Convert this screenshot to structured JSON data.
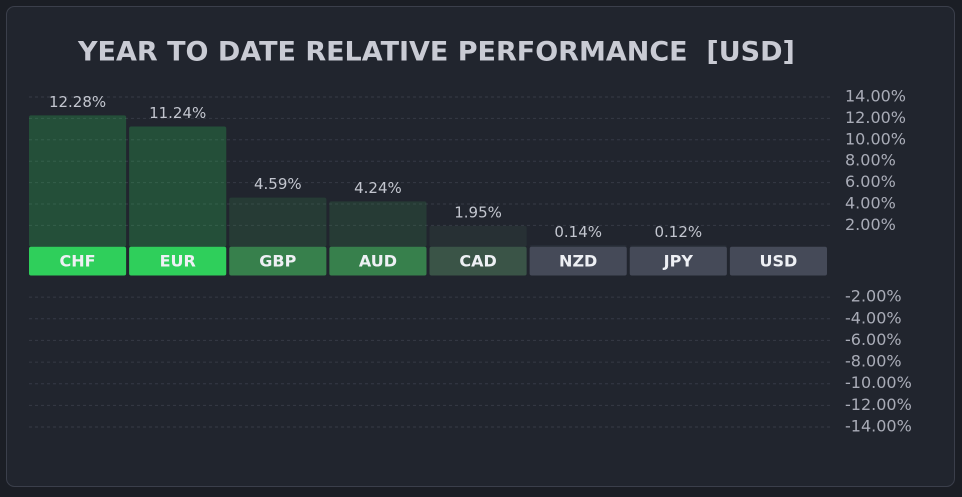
{
  "chart_data": {
    "type": "bar",
    "title": "YEAR TO DATE RELATIVE PERFORMANCE  [USD]",
    "categories": [
      "CHF",
      "EUR",
      "GBP",
      "AUD",
      "CAD",
      "NZD",
      "JPY",
      "USD"
    ],
    "values": [
      12.28,
      11.24,
      4.59,
      4.24,
      1.95,
      0.14,
      0.12,
      0
    ],
    "value_labels": [
      "12.28%",
      "11.24%",
      "4.59%",
      "4.24%",
      "1.95%",
      "0.14%",
      "0.12%",
      null
    ],
    "colors": [
      "#2fcf5b",
      "#2fcf5b",
      "#37804c",
      "#37804c",
      "#3a5447",
      "#454a58",
      "#454a58",
      "#454a58"
    ],
    "ylim": [
      -14,
      14
    ],
    "yticks": [
      {
        "value": 14,
        "label": "14.00%"
      },
      {
        "value": 12,
        "label": "12.00%"
      },
      {
        "value": 10,
        "label": "10.00%"
      },
      {
        "value": 8,
        "label": "8.00%"
      },
      {
        "value": 6,
        "label": "6.00%"
      },
      {
        "value": 4,
        "label": "4.00%"
      },
      {
        "value": 2,
        "label": "2.00%"
      },
      {
        "value": -2,
        "label": "-2.00%"
      },
      {
        "value": -4,
        "label": "-4.00%"
      },
      {
        "value": -6,
        "label": "-6.00%"
      },
      {
        "value": -8,
        "label": "-8.00%"
      },
      {
        "value": -10,
        "label": "-10.00%"
      },
      {
        "value": -12,
        "label": "-12.00%"
      },
      {
        "value": -14,
        "label": "-14.00%"
      }
    ],
    "grid": true
  }
}
